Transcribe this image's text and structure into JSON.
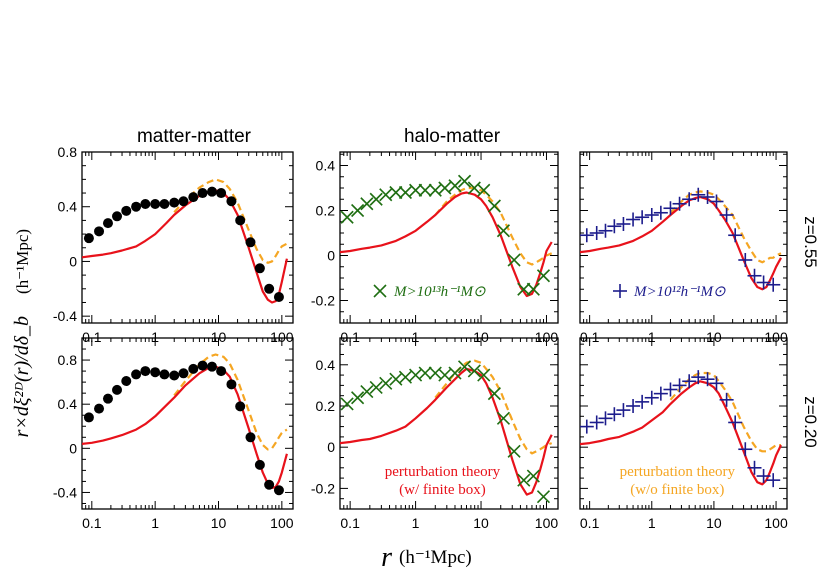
{
  "colors": {
    "pt_finite": "#e8121b",
    "pt_nofinite": "#f5a623",
    "matter_points": "#000000",
    "halo13_points": "#1f6e12",
    "halo12_points": "#1c1c8c"
  },
  "figure": {
    "column_titles": {
      "matter": "matter-matter",
      "halo": "halo-matter"
    },
    "row_labels": [
      "z=0.55",
      "z=0.20"
    ],
    "xlabel": {
      "main": "r",
      "unit": "(h⁻¹Mpc)"
    },
    "ylabel": {
      "main": "r×dξ²ᴰ(r)/dδ_b",
      "unit": "(h⁻¹Mpc)"
    }
  },
  "chart_data": [
    {
      "type": "line",
      "panel": "matter-matter z=0.55",
      "xscale": "log",
      "xlim": [
        0.07,
        150
      ],
      "ylim": [
        -0.45,
        0.8
      ],
      "x_ticks": [
        0.1,
        1,
        10,
        100
      ],
      "x_tick_labels": [
        "0.1",
        "1",
        "10",
        "100"
      ],
      "y_ticks": [
        -0.4,
        0,
        0.4,
        0.8
      ],
      "y_tick_labels": [
        "-0.4",
        "0",
        "0.4",
        "0.8"
      ],
      "markers": "dots",
      "points": {
        "x": [
          0.09,
          0.13,
          0.18,
          0.25,
          0.35,
          0.5,
          0.7,
          1.0,
          1.4,
          2.0,
          2.8,
          4.0,
          5.6,
          7.9,
          11,
          16,
          22,
          32,
          45,
          63,
          90
        ],
        "y": [
          0.17,
          0.22,
          0.28,
          0.33,
          0.37,
          0.4,
          0.42,
          0.42,
          0.42,
          0.43,
          0.44,
          0.47,
          0.5,
          0.51,
          0.5,
          0.44,
          0.3,
          0.14,
          -0.05,
          -0.2,
          -0.26
        ]
      },
      "curve_finite": {
        "x": [
          0.07,
          0.1,
          0.15,
          0.2,
          0.3,
          0.5,
          0.7,
          1,
          1.5,
          2,
          3,
          5,
          7,
          9,
          12,
          15,
          20,
          30,
          40,
          50,
          60,
          70,
          80,
          90,
          100,
          120
        ],
        "y": [
          0.03,
          0.04,
          0.05,
          0.06,
          0.08,
          0.11,
          0.15,
          0.2,
          0.28,
          0.34,
          0.41,
          0.48,
          0.51,
          0.52,
          0.5,
          0.45,
          0.34,
          0.1,
          -0.08,
          -0.22,
          -0.28,
          -0.3,
          -0.29,
          -0.24,
          -0.15,
          0.02
        ]
      },
      "curve_nofinite": {
        "x": [
          2,
          3,
          5,
          7,
          9,
          12,
          15,
          20,
          30,
          40,
          50,
          60,
          70,
          80,
          90,
          100,
          120
        ],
        "y": [
          0.36,
          0.45,
          0.54,
          0.58,
          0.6,
          0.58,
          0.53,
          0.43,
          0.23,
          0.09,
          0.01,
          -0.01,
          0.0,
          0.04,
          0.08,
          0.11,
          0.13
        ]
      }
    },
    {
      "type": "line",
      "panel": "halo-matter M>1e13 z=0.55",
      "xscale": "log",
      "xlim": [
        0.07,
        150
      ],
      "ylim": [
        -0.3,
        0.46
      ],
      "x_ticks": [
        0.1,
        1,
        10,
        100
      ],
      "x_tick_labels": [
        "0.1",
        "1",
        "10",
        "100"
      ],
      "y_ticks": [
        -0.2,
        0,
        0.2,
        0.4
      ],
      "y_tick_labels": [
        "-0.2",
        "0",
        "0.2",
        "0.4"
      ],
      "markers": "cross",
      "legend": {
        "text": "M>10¹³h⁻¹M⊙",
        "placement": "bottom-left"
      },
      "points": {
        "x": [
          0.09,
          0.13,
          0.18,
          0.25,
          0.35,
          0.5,
          0.7,
          1.0,
          1.4,
          2.0,
          2.8,
          4.0,
          5.6,
          7.9,
          11,
          16,
          22,
          32,
          45,
          63,
          90
        ],
        "y": [
          0.17,
          0.2,
          0.23,
          0.25,
          0.27,
          0.28,
          0.28,
          0.29,
          0.29,
          0.29,
          0.3,
          0.31,
          0.33,
          0.3,
          0.29,
          0.22,
          0.11,
          -0.02,
          -0.15,
          -0.15,
          -0.09
        ]
      },
      "curve_finite": {
        "x": [
          0.07,
          0.1,
          0.15,
          0.2,
          0.3,
          0.5,
          0.7,
          1,
          1.5,
          2,
          3,
          4,
          5,
          6,
          8,
          10,
          12,
          15,
          20,
          30,
          40,
          50,
          60,
          70,
          80,
          90,
          100,
          120
        ],
        "y": [
          0.015,
          0.02,
          0.03,
          0.035,
          0.045,
          0.065,
          0.085,
          0.11,
          0.15,
          0.18,
          0.23,
          0.26,
          0.275,
          0.28,
          0.27,
          0.25,
          0.22,
          0.17,
          0.09,
          -0.05,
          -0.14,
          -0.18,
          -0.17,
          -0.13,
          -0.08,
          -0.03,
          0.02,
          0.06
        ]
      },
      "curve_nofinite": {
        "x": [
          2,
          3,
          4,
          5,
          6,
          8,
          10,
          12,
          15,
          20,
          30,
          40,
          50,
          60,
          70,
          80,
          90,
          100,
          120
        ],
        "y": [
          0.18,
          0.24,
          0.27,
          0.29,
          0.3,
          0.3,
          0.29,
          0.27,
          0.24,
          0.19,
          0.08,
          0.01,
          -0.03,
          -0.04,
          -0.03,
          -0.02,
          -0.01,
          0.0,
          0.01
        ]
      }
    },
    {
      "type": "line",
      "panel": "halo-matter M>1e12 z=0.55",
      "xscale": "log",
      "xlim": [
        0.07,
        150
      ],
      "ylim": [
        -0.3,
        0.46
      ],
      "x_ticks": [
        0.1,
        1,
        10,
        100
      ],
      "x_tick_labels": [
        "0.1",
        "1",
        "10",
        "100"
      ],
      "y_ticks": [
        -0.2,
        0,
        0.2,
        0.4
      ],
      "y_tick_labels": [],
      "markers": "plus",
      "legend": {
        "text": "M>10¹²h⁻¹M⊙",
        "placement": "bottom-left"
      },
      "points": {
        "x": [
          0.09,
          0.13,
          0.18,
          0.25,
          0.35,
          0.5,
          0.7,
          1.0,
          1.4,
          2.0,
          2.8,
          4.0,
          5.6,
          7.9,
          11,
          16,
          22,
          32,
          45,
          63,
          90
        ],
        "y": [
          0.09,
          0.1,
          0.11,
          0.13,
          0.14,
          0.16,
          0.17,
          0.18,
          0.19,
          0.21,
          0.23,
          0.25,
          0.27,
          0.26,
          0.24,
          0.18,
          0.09,
          -0.02,
          -0.09,
          -0.12,
          -0.13
        ]
      },
      "curve_finite": {
        "x": [
          0.07,
          0.1,
          0.15,
          0.2,
          0.3,
          0.5,
          0.7,
          1,
          1.5,
          2,
          3,
          4,
          5,
          6,
          8,
          10,
          12,
          15,
          20,
          30,
          40,
          50,
          60,
          70,
          80,
          90,
          100,
          120
        ],
        "y": [
          0.015,
          0.02,
          0.03,
          0.035,
          0.045,
          0.065,
          0.085,
          0.11,
          0.15,
          0.18,
          0.22,
          0.245,
          0.255,
          0.26,
          0.25,
          0.23,
          0.2,
          0.16,
          0.1,
          -0.02,
          -0.1,
          -0.14,
          -0.15,
          -0.14,
          -0.11,
          -0.08,
          -0.05,
          -0.01
        ]
      },
      "curve_nofinite": {
        "x": [
          2,
          3,
          4,
          5,
          6,
          8,
          10,
          12,
          15,
          20,
          30,
          40,
          50,
          60,
          70,
          80,
          90,
          100,
          120
        ],
        "y": [
          0.19,
          0.24,
          0.27,
          0.28,
          0.285,
          0.28,
          0.27,
          0.25,
          0.22,
          0.18,
          0.08,
          0.02,
          -0.02,
          -0.03,
          -0.02,
          -0.01,
          -0.01,
          0.0,
          0.01
        ]
      }
    },
    {
      "type": "line",
      "panel": "matter-matter z=0.20",
      "xscale": "log",
      "xlim": [
        0.07,
        150
      ],
      "ylim": [
        -0.55,
        1.0
      ],
      "x_ticks": [
        0.1,
        1,
        10,
        100
      ],
      "x_tick_labels": [
        "0.1",
        "1",
        "10",
        "100"
      ],
      "y_ticks": [
        -0.4,
        0,
        0.4,
        0.8
      ],
      "y_tick_labels": [
        "-0.4",
        "0",
        "0.4",
        "0.8"
      ],
      "markers": "dots",
      "points": {
        "x": [
          0.09,
          0.13,
          0.18,
          0.25,
          0.35,
          0.5,
          0.7,
          1.0,
          1.4,
          2.0,
          2.8,
          4.0,
          5.6,
          7.9,
          11,
          16,
          22,
          32,
          45,
          63,
          90
        ],
        "y": [
          0.28,
          0.36,
          0.45,
          0.53,
          0.61,
          0.67,
          0.7,
          0.69,
          0.67,
          0.66,
          0.68,
          0.72,
          0.75,
          0.74,
          0.7,
          0.58,
          0.38,
          0.1,
          -0.15,
          -0.33,
          -0.38
        ]
      },
      "curve_finite": {
        "x": [
          0.07,
          0.1,
          0.15,
          0.2,
          0.3,
          0.5,
          0.7,
          1,
          1.5,
          2,
          3,
          5,
          7,
          9,
          12,
          15,
          20,
          30,
          40,
          50,
          60,
          70,
          80,
          90,
          100,
          120
        ],
        "y": [
          0.04,
          0.05,
          0.07,
          0.09,
          0.12,
          0.17,
          0.22,
          0.29,
          0.39,
          0.46,
          0.57,
          0.68,
          0.73,
          0.74,
          0.71,
          0.65,
          0.49,
          0.18,
          -0.05,
          -0.22,
          -0.32,
          -0.36,
          -0.35,
          -0.3,
          -0.22,
          -0.05
        ]
      },
      "curve_nofinite": {
        "x": [
          2,
          3,
          5,
          7,
          9,
          12,
          15,
          20,
          30,
          40,
          50,
          60,
          70,
          80,
          90,
          100,
          120
        ],
        "y": [
          0.48,
          0.61,
          0.76,
          0.83,
          0.85,
          0.83,
          0.77,
          0.62,
          0.34,
          0.14,
          0.03,
          -0.01,
          0.0,
          0.05,
          0.1,
          0.14,
          0.17
        ]
      }
    },
    {
      "type": "line",
      "panel": "halo-matter M>1e13 z=0.20",
      "xscale": "log",
      "xlim": [
        0.07,
        150
      ],
      "ylim": [
        -0.3,
        0.53
      ],
      "x_ticks": [
        0.1,
        1,
        10,
        100
      ],
      "x_tick_labels": [
        "0.1",
        "1",
        "10",
        "100"
      ],
      "y_ticks": [
        -0.2,
        0,
        0.2,
        0.4
      ],
      "y_tick_labels": [
        "-0.2",
        "0",
        "0.2",
        "0.4"
      ],
      "markers": "cross",
      "legend": {
        "text": "perturbation theory (w/ finite box)",
        "line1": "perturbation theory",
        "line2": "(w/ finite box)",
        "placement": "bottom-center"
      },
      "points": {
        "x": [
          0.09,
          0.13,
          0.18,
          0.25,
          0.35,
          0.5,
          0.7,
          1.0,
          1.4,
          2.0,
          2.8,
          4.0,
          5.6,
          7.9,
          11,
          16,
          22,
          32,
          45,
          63,
          90
        ],
        "y": [
          0.21,
          0.24,
          0.27,
          0.29,
          0.31,
          0.33,
          0.34,
          0.35,
          0.36,
          0.36,
          0.35,
          0.36,
          0.39,
          0.37,
          0.35,
          0.26,
          0.14,
          -0.02,
          -0.16,
          -0.14,
          -0.24
        ]
      },
      "curve_finite": {
        "x": [
          0.07,
          0.1,
          0.15,
          0.2,
          0.3,
          0.5,
          0.7,
          1,
          1.5,
          2,
          3,
          4,
          5,
          6,
          8,
          10,
          12,
          15,
          20,
          30,
          40,
          50,
          60,
          70,
          80,
          90,
          100,
          120
        ],
        "y": [
          0.02,
          0.025,
          0.035,
          0.04,
          0.055,
          0.08,
          0.1,
          0.14,
          0.19,
          0.23,
          0.29,
          0.33,
          0.36,
          0.38,
          0.37,
          0.35,
          0.31,
          0.24,
          0.13,
          -0.06,
          -0.18,
          -0.23,
          -0.22,
          -0.17,
          -0.11,
          -0.05,
          0.01,
          0.06
        ]
      },
      "curve_nofinite": {
        "x": [
          2,
          3,
          4,
          5,
          6,
          8,
          10,
          12,
          15,
          20,
          30,
          40,
          50,
          60,
          70,
          80,
          90,
          100,
          120
        ],
        "y": [
          0.24,
          0.31,
          0.36,
          0.39,
          0.41,
          0.42,
          0.41,
          0.38,
          0.34,
          0.27,
          0.13,
          0.04,
          -0.01,
          -0.03,
          -0.02,
          -0.01,
          0.0,
          0.01,
          0.02
        ]
      }
    },
    {
      "type": "line",
      "panel": "halo-matter M>1e12 z=0.20",
      "xscale": "log",
      "xlim": [
        0.07,
        150
      ],
      "ylim": [
        -0.3,
        0.53
      ],
      "x_ticks": [
        0.1,
        1,
        10,
        100
      ],
      "x_tick_labels": [
        "0.1",
        "1",
        "10",
        "100"
      ],
      "y_ticks": [
        -0.2,
        0,
        0.2,
        0.4
      ],
      "y_tick_labels": [],
      "markers": "plus",
      "legend": {
        "text": "perturbation theory (w/o finite box)",
        "line1": "perturbation theory",
        "line2": "(w/o finite box)",
        "placement": "bottom-center"
      },
      "points": {
        "x": [
          0.09,
          0.13,
          0.18,
          0.25,
          0.35,
          0.5,
          0.7,
          1.0,
          1.4,
          2.0,
          2.8,
          4.0,
          5.6,
          7.9,
          11,
          16,
          22,
          32,
          45,
          63,
          90
        ],
        "y": [
          0.1,
          0.12,
          0.14,
          0.16,
          0.18,
          0.2,
          0.22,
          0.24,
          0.26,
          0.28,
          0.3,
          0.32,
          0.34,
          0.33,
          0.31,
          0.23,
          0.12,
          -0.01,
          -0.1,
          -0.14,
          -0.16
        ]
      },
      "curve_finite": {
        "x": [
          0.07,
          0.1,
          0.15,
          0.2,
          0.3,
          0.5,
          0.7,
          1,
          1.5,
          2,
          3,
          4,
          5,
          6,
          8,
          10,
          12,
          15,
          20,
          30,
          40,
          50,
          60,
          70,
          80,
          90,
          100,
          120
        ],
        "y": [
          0.015,
          0.02,
          0.03,
          0.04,
          0.05,
          0.075,
          0.095,
          0.13,
          0.17,
          0.21,
          0.26,
          0.29,
          0.31,
          0.32,
          0.31,
          0.29,
          0.26,
          0.2,
          0.12,
          -0.02,
          -0.12,
          -0.17,
          -0.18,
          -0.16,
          -0.12,
          -0.08,
          -0.04,
          0.01
        ]
      },
      "curve_nofinite": {
        "x": [
          2,
          3,
          4,
          5,
          6,
          8,
          10,
          12,
          15,
          20,
          30,
          40,
          50,
          60,
          70,
          80,
          90,
          100,
          120
        ],
        "y": [
          0.23,
          0.29,
          0.33,
          0.35,
          0.36,
          0.36,
          0.35,
          0.32,
          0.28,
          0.22,
          0.1,
          0.03,
          -0.01,
          -0.02,
          -0.02,
          -0.01,
          0.0,
          0.01,
          0.01
        ]
      }
    }
  ]
}
